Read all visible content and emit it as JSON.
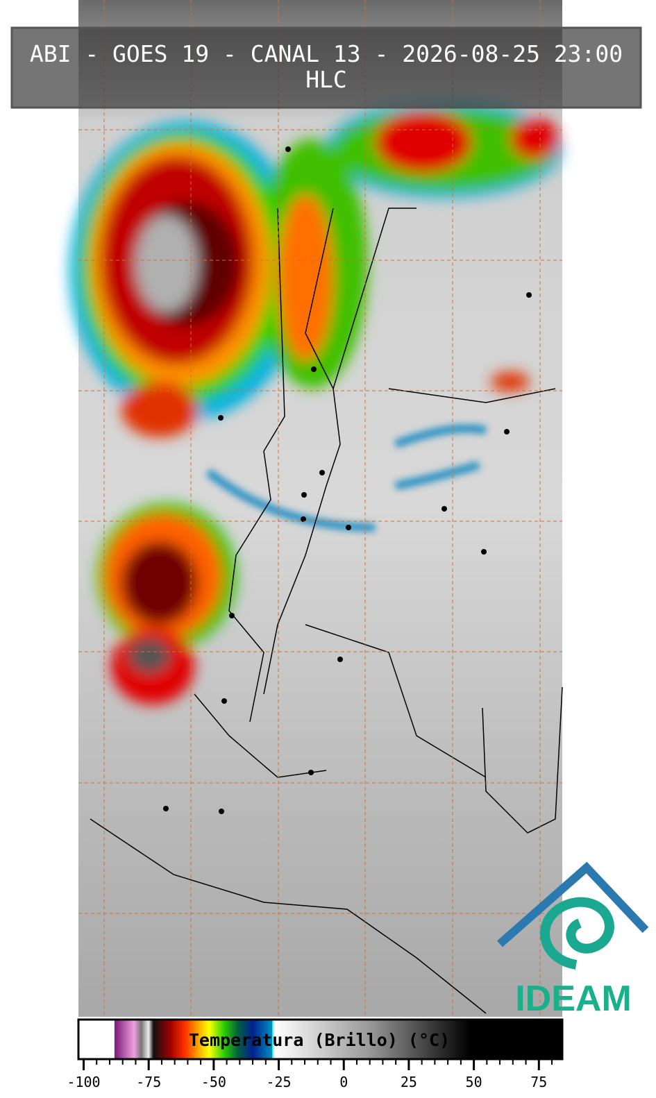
{
  "header": {
    "title": "ABI - GOES 19 - CANAL 13 - 2026-08-25 23:00",
    "subtitle": "HLC"
  },
  "colorbar": {
    "label": "Temperatura (Brillo) (°C)",
    "lim": [
      -102,
      84
    ],
    "ticks": [
      -100,
      -75,
      -50,
      -25,
      0,
      25,
      50,
      75
    ]
  },
  "logo": {
    "text": "IDEAM"
  }
}
